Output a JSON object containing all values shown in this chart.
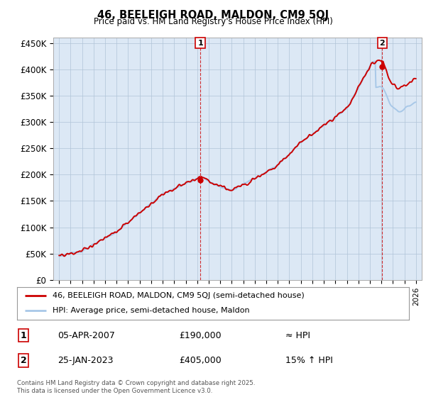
{
  "title": "46, BEELEIGH ROAD, MALDON, CM9 5QJ",
  "subtitle": "Price paid vs. HM Land Registry's House Price Index (HPI)",
  "ylabel_ticks": [
    "£0",
    "£50K",
    "£100K",
    "£150K",
    "£200K",
    "£250K",
    "£300K",
    "£350K",
    "£400K",
    "£450K"
  ],
  "ytick_values": [
    0,
    50000,
    100000,
    150000,
    200000,
    250000,
    300000,
    350000,
    400000,
    450000
  ],
  "ylim": [
    0,
    460000
  ],
  "xlim_start": 1994.5,
  "xlim_end": 2026.5,
  "hpi_color": "#a8c8e8",
  "price_color": "#cc0000",
  "marker1_x": 2007.27,
  "marker1_y": 190000,
  "marker2_x": 2023.07,
  "marker2_y": 405000,
  "legend_line1": "46, BEELEIGH ROAD, MALDON, CM9 5QJ (semi-detached house)",
  "legend_line2": "HPI: Average price, semi-detached house, Maldon",
  "table_row1": [
    "1",
    "05-APR-2007",
    "£190,000",
    "≈ HPI"
  ],
  "table_row2": [
    "2",
    "25-JAN-2023",
    "£405,000",
    "15% ↑ HPI"
  ],
  "footnote": "Contains HM Land Registry data © Crown copyright and database right 2025.\nThis data is licensed under the Open Government Licence v3.0.",
  "bg_chart": "#dce8f5",
  "bg_white": "#ffffff",
  "grid_color": "#b0c4d8"
}
